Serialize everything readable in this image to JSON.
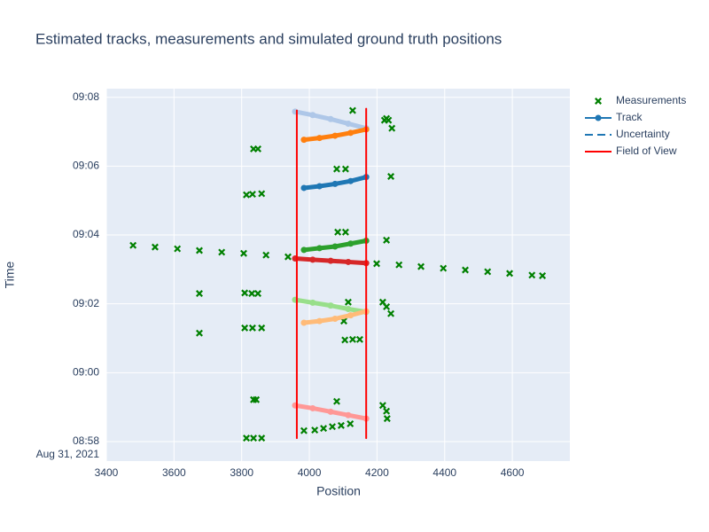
{
  "chart_data": {
    "type": "scatter",
    "title": "Estimated tracks, measurements and simulated ground truth positions",
    "x_label": "Position",
    "y_label": "Time",
    "xlim": [
      3400,
      4770
    ],
    "xticks": [
      3400,
      3600,
      3800,
      4000,
      4200,
      4400,
      4600
    ],
    "ylim": [
      "08:57:26",
      "09:08:15"
    ],
    "yticks": [
      "08:58",
      "09:00",
      "09:02",
      "09:04",
      "09:06",
      "09:08"
    ],
    "y_date_label": "Aug 31, 2021",
    "grid": true,
    "legend": "right",
    "series": [
      {
        "name": "Measurements",
        "color": "#008000",
        "marker": "x",
        "x": [
          3479,
          3544,
          3610,
          3675,
          3741,
          3806,
          3872,
          3937,
          4199,
          4265,
          4330,
          4396,
          4461,
          4527,
          4592,
          4658,
          4689,
          4128,
          4222,
          4228,
          4234,
          4244,
          3835,
          3848,
          4241,
          4081,
          4107,
          3814,
          3832,
          3859,
          4084,
          4107,
          4228,
          3675,
          3809,
          3830,
          3848,
          4115,
          4217,
          4228,
          4241,
          3675,
          3809,
          3832,
          3859,
          4102,
          4105,
          4128,
          4149,
          3835,
          3843,
          4081,
          4217,
          4228,
          4230,
          3814,
          3835,
          3859,
          3984,
          4016,
          4042,
          4068,
          4094,
          4121
        ],
        "y": [
          "09:03:42",
          "09:03:39",
          "09:03:36",
          "09:03:33",
          "09:03:30",
          "09:03:28",
          "09:03:25",
          "09:03:22",
          "09:03:10",
          "09:03:08",
          "09:03:05",
          "09:03:02",
          "09:02:59",
          "09:02:56",
          "09:02:53",
          "09:02:50",
          "09:02:49",
          "09:07:37",
          "09:07:20",
          "09:07:23",
          "09:07:20",
          "09:07:06",
          "09:06:30",
          "09:06:30",
          "09:05:42",
          "09:05:55",
          "09:05:55",
          "09:05:10",
          "09:05:11",
          "09:05:12",
          "09:04:05",
          "09:04:05",
          "09:03:51",
          "09:02:18",
          "09:02:19",
          "09:02:18",
          "09:02:18",
          "09:02:03",
          "09:02:03",
          "09:01:55",
          "09:01:43",
          "09:01:09",
          "09:01:18",
          "09:01:18",
          "09:01:18",
          "09:01:30",
          "09:00:57",
          "09:00:58",
          "09:00:58",
          "08:59:13",
          "08:59:13",
          "08:59:10",
          "08:59:03",
          "08:58:53",
          "08:58:40",
          "08:58:06",
          "08:58:06",
          "08:58:06",
          "08:58:19",
          "08:58:20",
          "08:58:23",
          "08:58:26",
          "08:58:28",
          "08:58:31"
        ]
      },
      {
        "name": "Track",
        "color": "#1f77b4",
        "marker": "circle",
        "segments": [
          {
            "color": "#aec7e8",
            "x": [
              3958,
              4010,
              4063,
              4115,
              4168
            ],
            "y": [
              "09:07:35",
              "09:07:29",
              "09:07:22",
              "09:07:14",
              "09:07:06"
            ]
          },
          {
            "color": "#ff7f0e",
            "x": [
              3984,
              4030,
              4076,
              4122,
              4168
            ],
            "y": [
              "09:06:46",
              "09:06:49",
              "09:06:53",
              "09:06:58",
              "09:07:04"
            ]
          },
          {
            "color": "#1f77b4",
            "x": [
              3984,
              4030,
              4076,
              4122,
              4168
            ],
            "y": [
              "09:05:22",
              "09:05:25",
              "09:05:29",
              "09:05:34",
              "09:05:41"
            ]
          },
          {
            "color": "#2ca02c",
            "x": [
              3984,
              4030,
              4076,
              4122,
              4168
            ],
            "y": [
              "09:03:34",
              "09:03:37",
              "09:03:40",
              "09:03:45",
              "09:03:50"
            ]
          },
          {
            "color": "#d62728",
            "x": [
              3958,
              4010,
              4063,
              4115,
              4168
            ],
            "y": [
              "09:03:19",
              "09:03:17",
              "09:03:15",
              "09:03:13",
              "09:03:11"
            ]
          },
          {
            "color": "#98df8a",
            "x": [
              3958,
              4010,
              4063,
              4115,
              4168
            ],
            "y": [
              "09:02:07",
              "09:02:02",
              "09:01:57",
              "09:01:51",
              "09:01:46"
            ]
          },
          {
            "color": "#ffbb78",
            "x": [
              3984,
              4030,
              4076,
              4122,
              4168
            ],
            "y": [
              "09:01:27",
              "09:01:30",
              "09:01:34",
              "09:01:40",
              "09:01:47"
            ]
          },
          {
            "color": "#ff9896",
            "x": [
              3958,
              4010,
              4063,
              4115,
              4168
            ],
            "y": [
              "08:59:03",
              "08:58:58",
              "08:58:52",
              "08:58:46",
              "08:58:40"
            ]
          }
        ]
      },
      {
        "name": "Uncertainty",
        "color": "#1f77b4",
        "dash": "dash"
      },
      {
        "name": "Field of View",
        "color": "#ff0000",
        "segments": [
          {
            "x": [
              3963,
              3963
            ],
            "y": [
              "08:58:06",
              "09:07:37"
            ]
          },
          {
            "x": [
              4168,
              4168
            ],
            "y": [
              "08:58:06",
              "09:07:40"
            ]
          }
        ]
      }
    ]
  }
}
